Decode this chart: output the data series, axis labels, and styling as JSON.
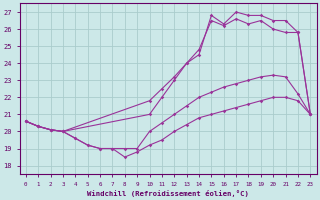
{
  "bg_color": "#cce8e8",
  "line_color": "#993399",
  "grid_color": "#aacccc",
  "xlabel": "Windchill (Refroidissement éolien,°C)",
  "ylabel_ticks": [
    18,
    19,
    20,
    21,
    22,
    23,
    24,
    25,
    26,
    27
  ],
  "xtick_labels": [
    "0",
    "1",
    "2",
    "3",
    "4",
    "5",
    "6",
    "7",
    "8",
    "9",
    "10",
    "11",
    "12",
    "13",
    "14",
    "15",
    "16",
    "17",
    "18",
    "19",
    "20",
    "21",
    "22",
    "23"
  ],
  "xlim": [
    -0.5,
    23.5
  ],
  "ylim": [
    17.5,
    27.5
  ],
  "lines": [
    {
      "x": [
        0,
        1,
        2,
        3,
        4,
        5,
        6,
        7,
        8,
        9,
        10,
        11,
        12,
        13,
        14,
        15,
        16,
        17,
        18,
        19,
        20,
        21,
        22,
        23
      ],
      "y": [
        20.6,
        20.3,
        20.1,
        20.0,
        19.6,
        19.2,
        19.0,
        19.0,
        18.5,
        18.8,
        19.2,
        19.5,
        20.0,
        20.4,
        20.8,
        21.0,
        21.2,
        21.4,
        21.6,
        21.8,
        22.0,
        22.0,
        21.8,
        21.0
      ]
    },
    {
      "x": [
        0,
        1,
        2,
        3,
        4,
        5,
        6,
        7,
        8,
        9,
        10,
        11,
        12,
        13,
        14,
        15,
        16,
        17,
        18,
        19,
        20,
        21,
        22,
        23
      ],
      "y": [
        20.6,
        20.3,
        20.1,
        20.0,
        19.6,
        19.2,
        19.0,
        19.0,
        19.0,
        19.0,
        20.0,
        20.5,
        21.0,
        21.5,
        22.0,
        22.3,
        22.6,
        22.8,
        23.0,
        23.2,
        23.3,
        23.2,
        22.2,
        21.0
      ]
    },
    {
      "x": [
        0,
        1,
        2,
        3,
        10,
        11,
        12,
        13,
        14,
        15,
        16,
        17,
        18,
        19,
        20,
        21,
        22,
        23
      ],
      "y": [
        20.6,
        20.3,
        20.1,
        20.0,
        21.8,
        22.5,
        23.2,
        24.0,
        24.8,
        26.5,
        26.2,
        26.6,
        26.3,
        26.5,
        26.0,
        25.8,
        25.8,
        21.0
      ]
    },
    {
      "x": [
        0,
        1,
        2,
        3,
        10,
        11,
        12,
        13,
        14,
        15,
        16,
        17,
        18,
        19,
        20,
        21,
        22,
        23
      ],
      "y": [
        20.6,
        20.3,
        20.1,
        20.0,
        21.0,
        22.0,
        23.0,
        24.0,
        24.5,
        26.8,
        26.3,
        27.0,
        26.8,
        26.8,
        26.5,
        26.5,
        25.8,
        21.0
      ]
    }
  ]
}
